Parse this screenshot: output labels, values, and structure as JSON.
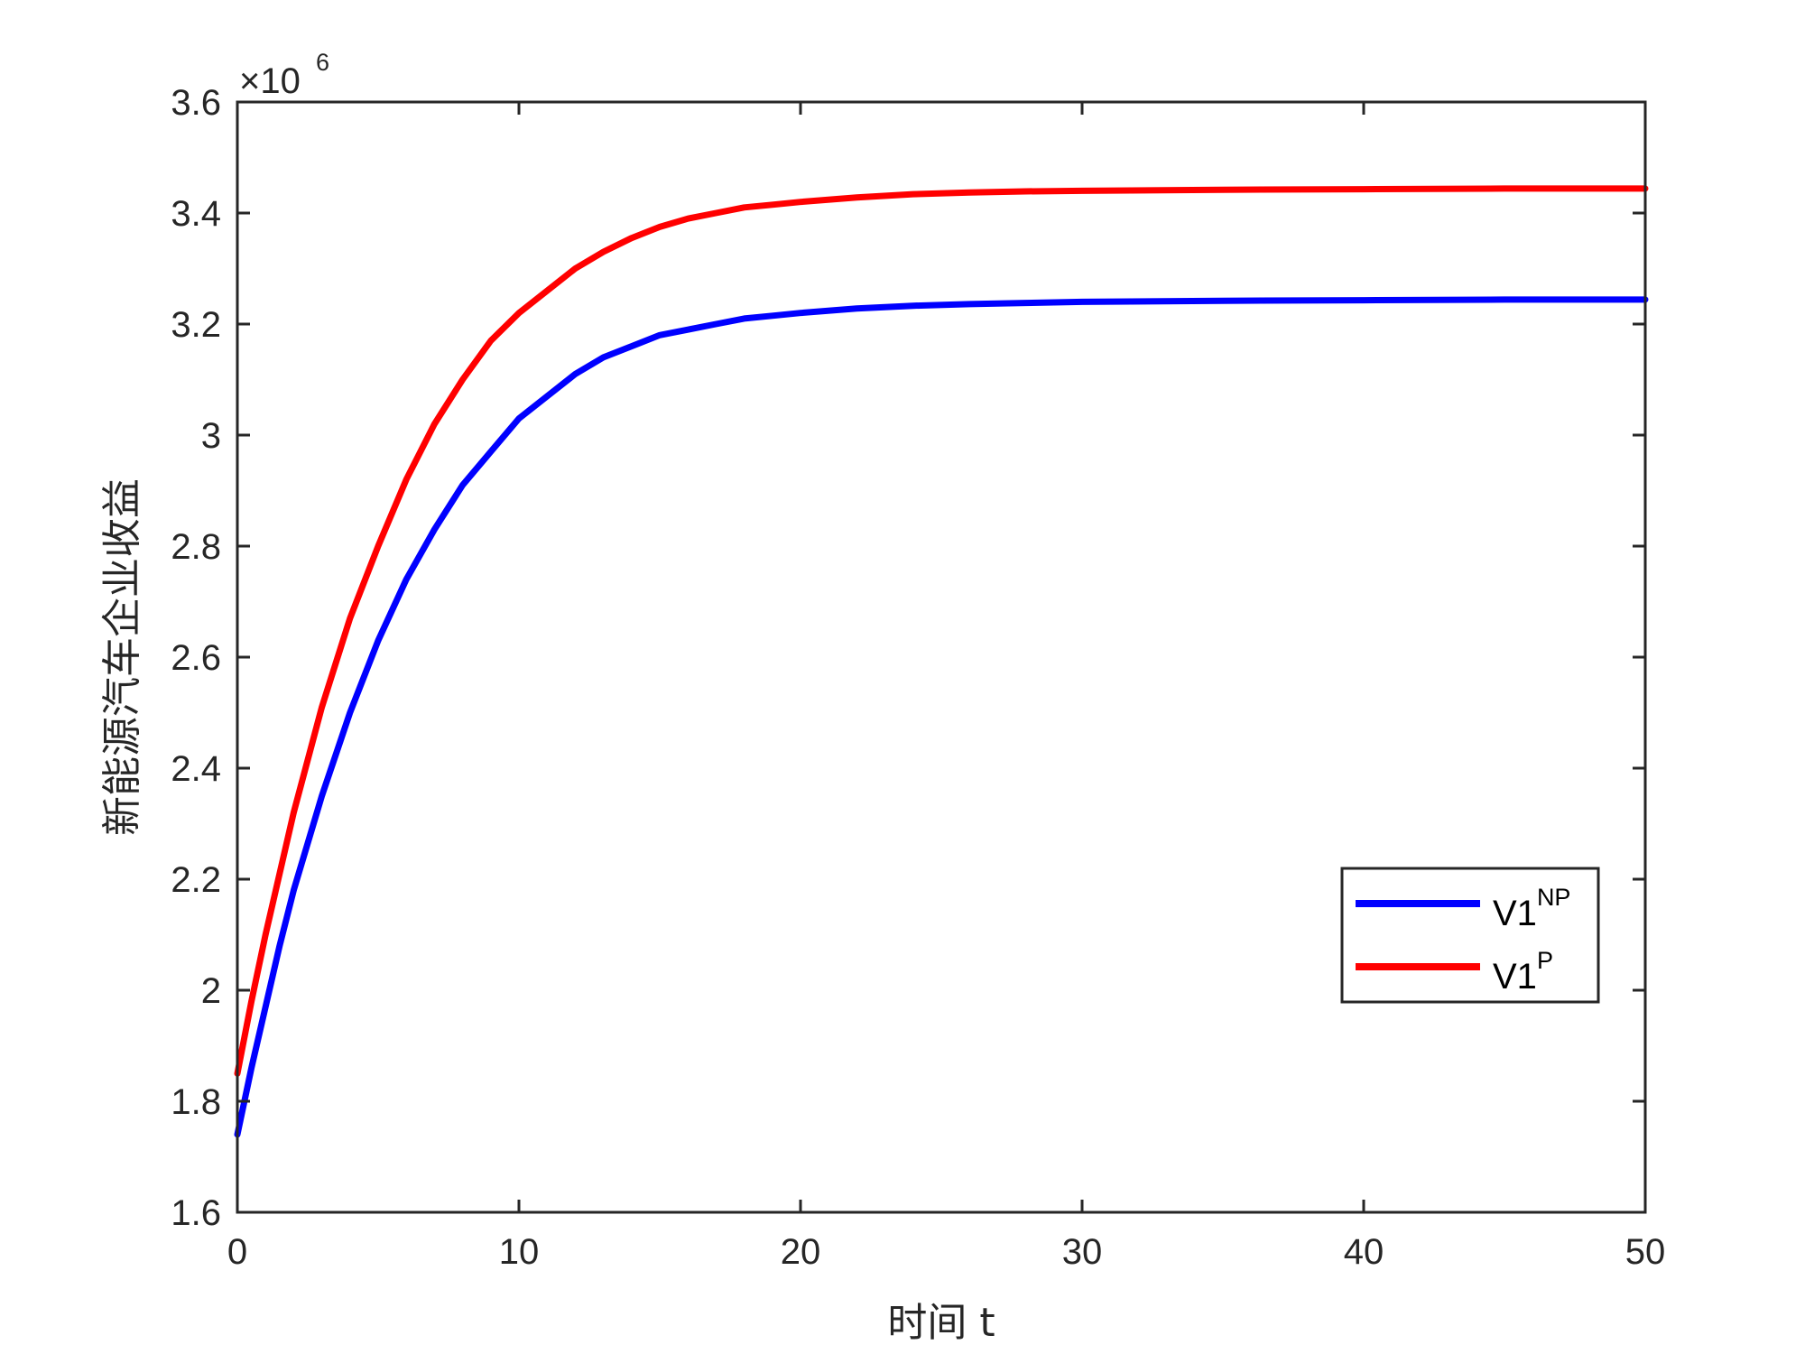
{
  "chart_data": {
    "type": "line",
    "xlabel": "时间 t",
    "ylabel": "新能源汽车企业收益",
    "xlim": [
      0,
      50
    ],
    "ylim": [
      1.6,
      3.6
    ],
    "y_multiplier": {
      "base": "×10",
      "exponent": "6"
    },
    "x_ticks": [
      "0",
      "10",
      "20",
      "30",
      "40",
      "50"
    ],
    "y_ticks": [
      "1.6",
      "1.8",
      "2",
      "2.2",
      "2.4",
      "2.6",
      "2.8",
      "3",
      "3.2",
      "3.4",
      "3.6"
    ],
    "grid": false,
    "legend_position": "bottom-right",
    "series": [
      {
        "name": "V1",
        "name_sup": "NP",
        "color": "#0000ff",
        "x": [
          0,
          0.5,
          1,
          1.5,
          2,
          3,
          4,
          5,
          6,
          7,
          8,
          9,
          10,
          11,
          12,
          13,
          14,
          15,
          16,
          17,
          18,
          19,
          20,
          22,
          24,
          26,
          28,
          30,
          35,
          40,
          45,
          50
        ],
        "y": [
          1.74,
          1.86,
          1.97,
          2.08,
          2.18,
          2.35,
          2.5,
          2.63,
          2.74,
          2.83,
          2.91,
          2.97,
          3.03,
          3.07,
          3.11,
          3.14,
          3.16,
          3.18,
          3.19,
          3.2,
          3.21,
          3.215,
          3.22,
          3.228,
          3.233,
          3.236,
          3.238,
          3.24,
          3.242,
          3.243,
          3.244,
          3.244
        ]
      },
      {
        "name": "V1",
        "name_sup": "P",
        "color": "#ff0000",
        "x": [
          0,
          0.5,
          1,
          1.5,
          2,
          3,
          4,
          5,
          6,
          7,
          8,
          9,
          10,
          11,
          12,
          13,
          14,
          15,
          16,
          17,
          18,
          19,
          20,
          22,
          24,
          26,
          28,
          30,
          35,
          40,
          45,
          50
        ],
        "y": [
          1.85,
          1.98,
          2.1,
          2.21,
          2.32,
          2.51,
          2.67,
          2.8,
          2.92,
          3.02,
          3.1,
          3.17,
          3.22,
          3.26,
          3.3,
          3.33,
          3.355,
          3.375,
          3.39,
          3.4,
          3.41,
          3.415,
          3.42,
          3.428,
          3.434,
          3.437,
          3.439,
          3.44,
          3.442,
          3.443,
          3.444,
          3.444
        ]
      }
    ]
  }
}
